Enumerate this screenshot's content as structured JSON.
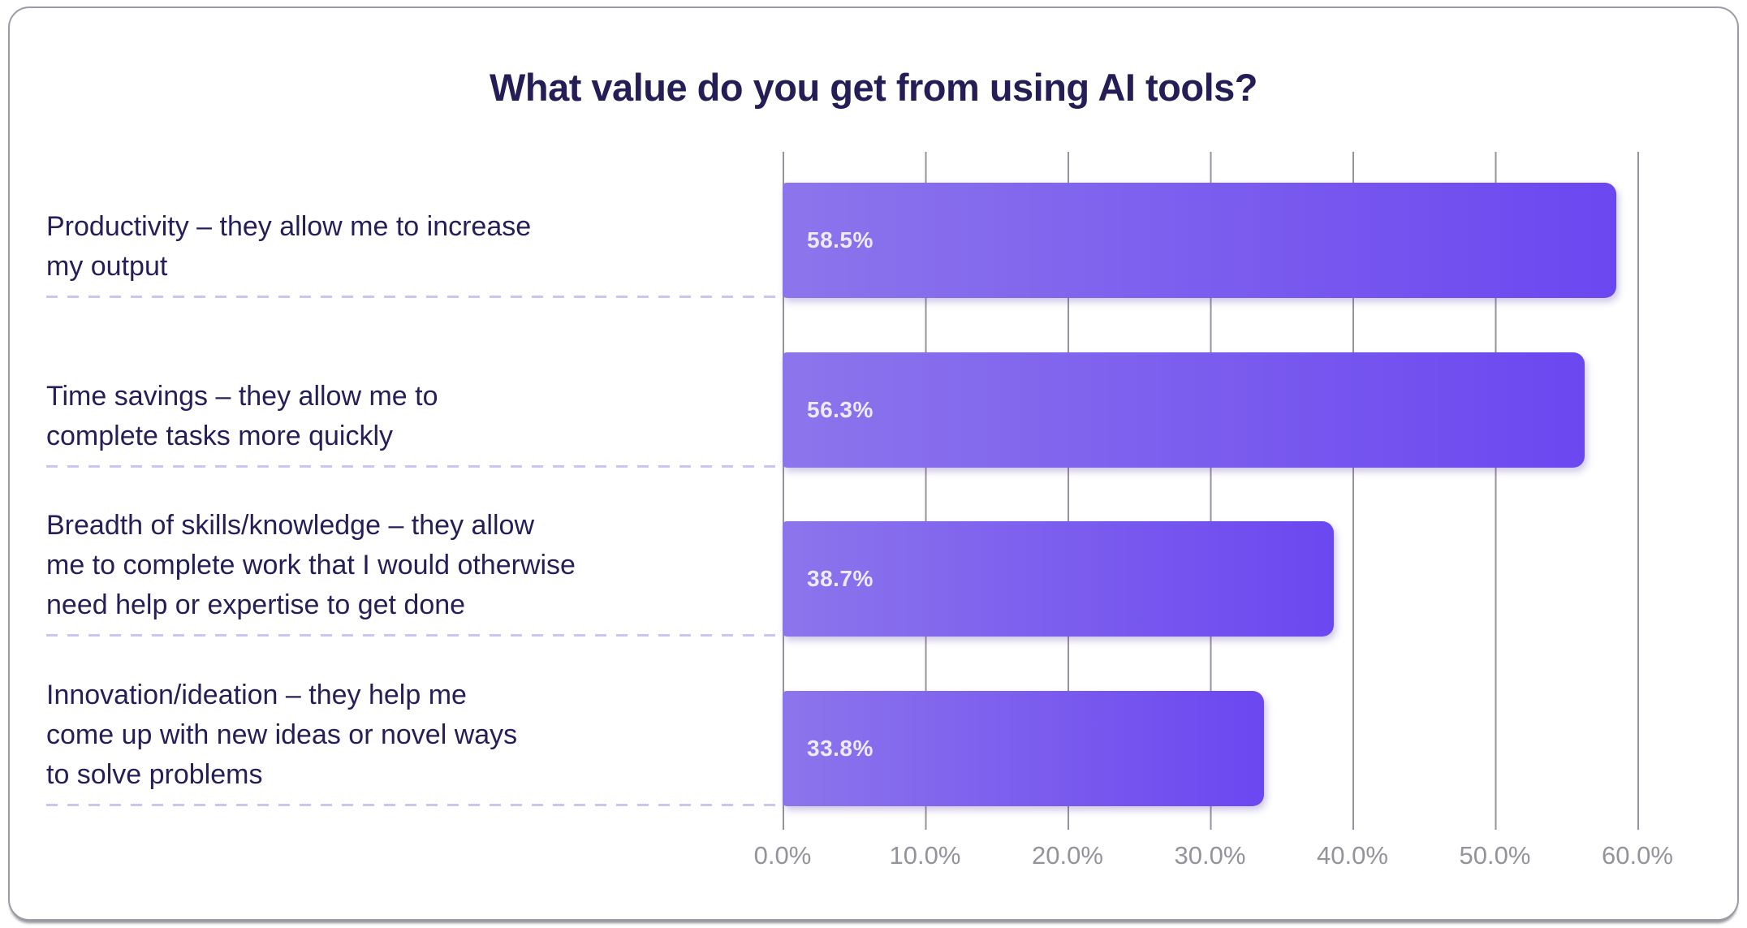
{
  "chart_data": {
    "type": "bar",
    "orientation": "horizontal",
    "title": "What value do you get from using AI tools?",
    "categories": [
      "Productivity – they allow me to increase\nmy output",
      "Time savings – they allow me to\ncomplete tasks more quickly",
      "Breadth of skills/knowledge – they allow\nme to complete work that I would otherwise\nneed help or expertise to get done",
      "Innovation/ideation – they help me\ncome up with new ideas or novel ways\nto solve problems"
    ],
    "values": [
      58.5,
      56.3,
      38.7,
      33.8
    ],
    "value_labels": [
      "58.5%",
      "56.3%",
      "38.7%",
      "33.8%"
    ],
    "xlabel": "",
    "ylabel": "",
    "xlim": [
      0,
      60
    ],
    "x_ticks": [
      "0.0%",
      "10.0%",
      "20.0%",
      "30.0%",
      "40.0%",
      "50.0%",
      "60.0%"
    ],
    "grid": "vertical-gridlines-on",
    "legend": "none",
    "colors": {
      "background": "#ffffff",
      "card_border": "#9d9aa5",
      "title": "#241d56",
      "label": "#251e57",
      "tick": "#95929c",
      "gridline": "#96939e",
      "dash": "#cbc5ef",
      "bar_gradient_start": "#8c75ec",
      "bar_gradient_end": "#6b47f0",
      "value_label": "#edeaf9"
    }
  }
}
